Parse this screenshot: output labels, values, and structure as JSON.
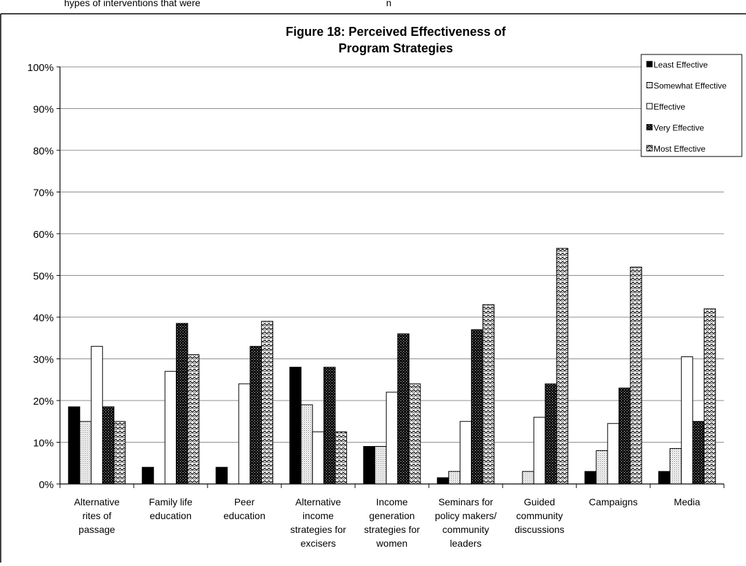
{
  "header": {
    "caption_fragment": "hypes of interventions that were",
    "caption_suffix": "n"
  },
  "chart_data": {
    "type": "bar",
    "title": "Figure 18:  Perceived Effectiveness of Program Strategies",
    "title_lines": [
      "Figure 18:  Perceived Effectiveness of",
      "Program Strategies"
    ],
    "xlabel": "",
    "ylabel": "",
    "ylim": [
      0,
      100
    ],
    "yticks": [
      "0%",
      "10%",
      "20%",
      "30%",
      "40%",
      "50%",
      "60%",
      "70%",
      "80%",
      "90%",
      "100%"
    ],
    "grid": true,
    "legend_position": "top-right",
    "categories": [
      [
        "Alternative",
        "rites of",
        "passage"
      ],
      [
        "Family life",
        "education"
      ],
      [
        "Peer",
        "education"
      ],
      [
        "Alternative",
        "income",
        "strategies for",
        "excisers"
      ],
      [
        "Income",
        "generation",
        "strategies for",
        "women"
      ],
      [
        "Seminars for",
        "policy makers/",
        "community",
        "leaders"
      ],
      [
        "Guided",
        "community",
        "discussions"
      ],
      [
        "Campaigns"
      ],
      [
        "Media"
      ]
    ],
    "series": [
      {
        "name": "Least Effective",
        "fill": "black",
        "values": [
          18.5,
          4,
          4,
          28,
          9,
          1.5,
          0,
          3,
          3
        ]
      },
      {
        "name": "Somewhat Effective",
        "fill": "dots",
        "values": [
          15,
          0,
          0,
          19,
          9,
          3,
          3,
          8,
          8.5
        ]
      },
      {
        "name": "Effective",
        "fill": "white",
        "values": [
          33,
          27,
          24,
          12.5,
          22,
          15,
          16,
          14.5,
          30.5
        ]
      },
      {
        "name": "Very Effective",
        "fill": "darkgrid",
        "values": [
          18.5,
          38.5,
          33,
          28,
          36,
          37,
          24,
          23,
          15
        ]
      },
      {
        "name": "Most Effective",
        "fill": "zigzag",
        "values": [
          15,
          31,
          39,
          12.5,
          24,
          43,
          56.5,
          52,
          42
        ]
      }
    ]
  }
}
